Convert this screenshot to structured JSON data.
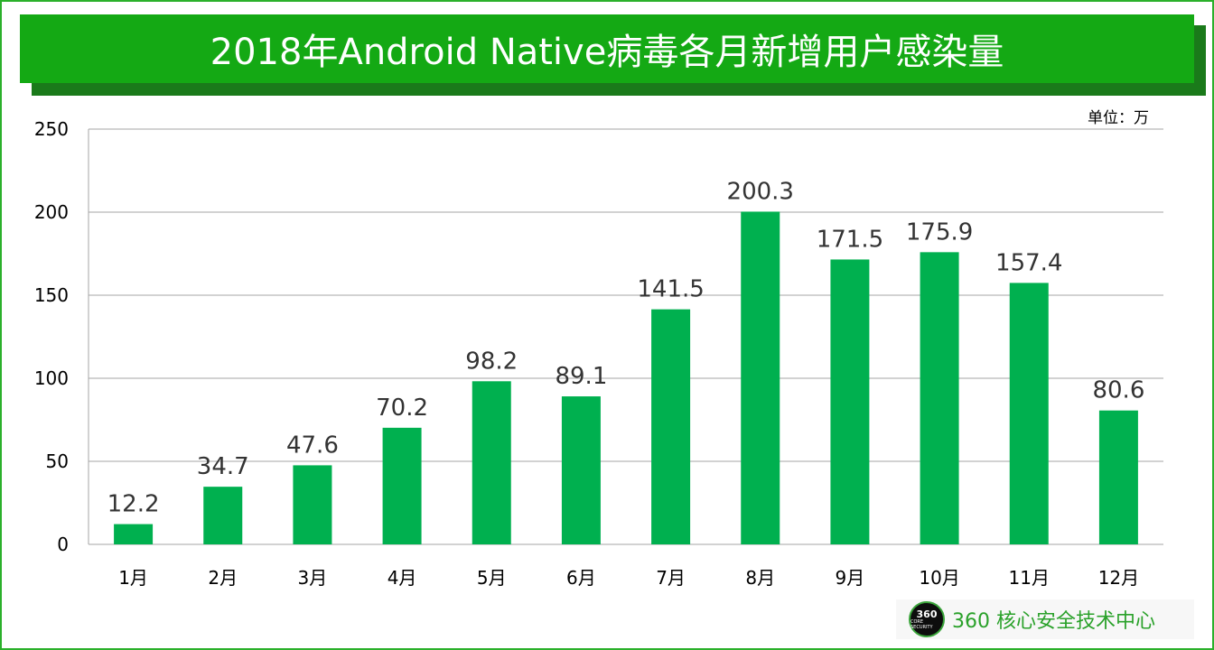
{
  "title": "2018年Android Native病毒各月新增用户感染量",
  "unit_label": "单位：万",
  "logo": {
    "mark_number": "360",
    "mark_sub": "CORE SECURITY",
    "text": "360 核心安全技术中心"
  },
  "colors": {
    "bar": "#00b04f",
    "title_bg": "#14a914",
    "title_shadow": "#1a7a1a",
    "frame": "#2bb02b",
    "grid": "#a6a6a6"
  },
  "chart_data": {
    "type": "bar",
    "title": "2018年Android Native病毒各月新增用户感染量",
    "categories": [
      "1月",
      "2月",
      "3月",
      "4月",
      "5月",
      "6月",
      "7月",
      "8月",
      "9月",
      "10月",
      "11月",
      "12月"
    ],
    "values": [
      12.2,
      34.7,
      47.6,
      70.2,
      98.2,
      89.1,
      141.5,
      200.3,
      171.5,
      175.9,
      157.4,
      80.6
    ],
    "data_labels": [
      "12.2",
      "34.7",
      "47.6",
      "70.2",
      "98.2",
      "89.1",
      "141.5",
      "200.3",
      "171.5",
      "175.9",
      "157.4",
      "80.6"
    ],
    "yticks": [
      "0",
      "50",
      "100",
      "150",
      "200",
      "250"
    ],
    "ytick_values": [
      0,
      50,
      100,
      150,
      200,
      250
    ],
    "ylim": [
      0,
      250
    ],
    "grid": true,
    "legend": "none"
  }
}
